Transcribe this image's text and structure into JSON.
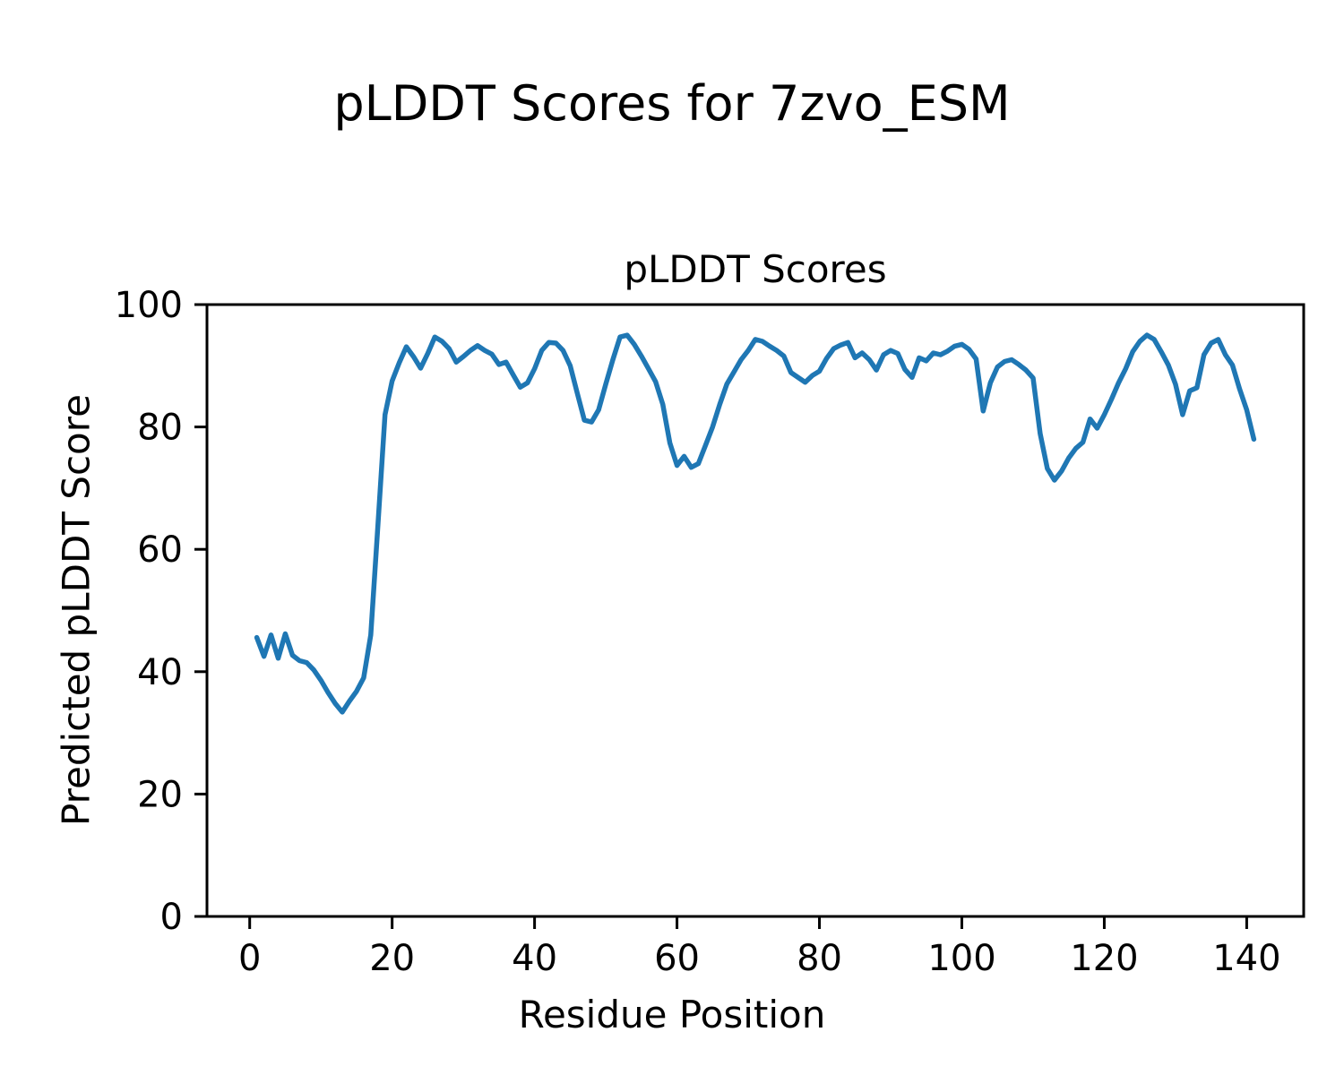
{
  "figure": {
    "suptitle": "pLDDT Scores for 7zvo_ESM",
    "background_color": "#ffffff",
    "text_color": "#000000"
  },
  "chart_data": {
    "type": "line",
    "title": "pLDDT Scores",
    "xlabel": "Residue Position",
    "ylabel": "Predicted pLDDT Score",
    "legend": null,
    "grid": false,
    "line_color": "#1f77b4",
    "line_width": 5.5,
    "xlim": [
      -6,
      148
    ],
    "ylim": [
      0,
      100
    ],
    "xticks": [
      0,
      20,
      40,
      60,
      80,
      100,
      120,
      140
    ],
    "yticks": [
      0,
      20,
      40,
      60,
      80,
      100
    ],
    "x_start": 1,
    "x_step": 1,
    "values": [
      45.6,
      42.5,
      46.0,
      42.2,
      46.2,
      42.7,
      41.8,
      41.5,
      40.3,
      38.6,
      36.6,
      34.8,
      33.4,
      35.2,
      36.8,
      39.0,
      46.0,
      64.0,
      82.0,
      87.5,
      90.5,
      93.1,
      91.5,
      89.6,
      92.0,
      94.7,
      94.0,
      92.8,
      90.6,
      91.5,
      92.5,
      93.3,
      92.5,
      91.9,
      90.2,
      90.6,
      88.5,
      86.5,
      87.2,
      89.5,
      92.5,
      93.8,
      93.7,
      92.5,
      90.0,
      85.5,
      81.1,
      80.8,
      82.8,
      87.0,
      91.0,
      94.7,
      95.0,
      93.5,
      91.6,
      89.5,
      87.4,
      83.7,
      77.4,
      73.7,
      75.2,
      73.4,
      74.0,
      77.0,
      80.0,
      83.7,
      87.0,
      89.0,
      91.0,
      92.5,
      94.3,
      94.0,
      93.2,
      92.5,
      91.6,
      88.9,
      88.1,
      87.3,
      88.4,
      89.1,
      91.2,
      92.8,
      93.4,
      93.8,
      91.3,
      92.1,
      91.0,
      89.3,
      91.8,
      92.5,
      92.0,
      89.4,
      88.1,
      91.3,
      90.8,
      92.1,
      91.8,
      92.4,
      93.2,
      93.5,
      92.7,
      91.1,
      82.6,
      87.2,
      89.8,
      90.7,
      91.0,
      90.2,
      89.3,
      88.0,
      78.9,
      73.2,
      71.3,
      72.8,
      74.9,
      76.5,
      77.5,
      81.3,
      79.8,
      82.0,
      84.5,
      87.2,
      89.5,
      92.3,
      94.0,
      95.0,
      94.3,
      92.3,
      90.1,
      87.0,
      82.0,
      85.9,
      86.4,
      91.8,
      93.7,
      94.3,
      91.8,
      90.1,
      86.2,
      82.8,
      78.0
    ]
  }
}
